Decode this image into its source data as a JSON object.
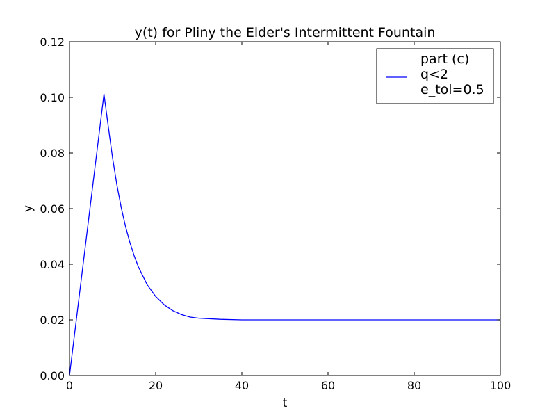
{
  "chart_data": {
    "type": "line",
    "title": "y(t) for Pliny the Elder's Intermittent Fountain",
    "xlabel": "t",
    "ylabel": "y",
    "xlim": [
      0,
      100
    ],
    "ylim": [
      0,
      0.12
    ],
    "xticks": [
      0,
      20,
      40,
      60,
      80,
      100
    ],
    "xtick_labels": [
      "0",
      "20",
      "40",
      "60",
      "80",
      "100"
    ],
    "yticks": [
      0,
      0.02,
      0.04,
      0.06,
      0.08,
      0.1,
      0.12
    ],
    "ytick_labels": [
      "0.00",
      "0.02",
      "0.04",
      "0.06",
      "0.08",
      "0.10",
      "0.12"
    ],
    "grid": false,
    "legend": {
      "placement": "upper-right",
      "lines": [
        "part (c)",
        "q<2",
        "e_tol=0.5"
      ]
    },
    "series": [
      {
        "color": "#0000ff",
        "x": [
          0,
          2,
          4,
          6,
          8,
          9,
          10,
          11,
          12,
          13,
          14,
          15,
          16,
          18,
          20,
          22,
          24,
          26,
          28,
          30,
          35,
          40,
          50,
          60,
          70,
          80,
          90,
          100
        ],
        "y": [
          0,
          0.0253,
          0.0506,
          0.0759,
          0.1012,
          0.0895,
          0.0782,
          0.0685,
          0.0604,
          0.0536,
          0.0479,
          0.0431,
          0.039,
          0.0327,
          0.0284,
          0.0254,
          0.0233,
          0.0219,
          0.021,
          0.0206,
          0.0202,
          0.02,
          0.02,
          0.02,
          0.02,
          0.02,
          0.02,
          0.02
        ]
      }
    ]
  }
}
